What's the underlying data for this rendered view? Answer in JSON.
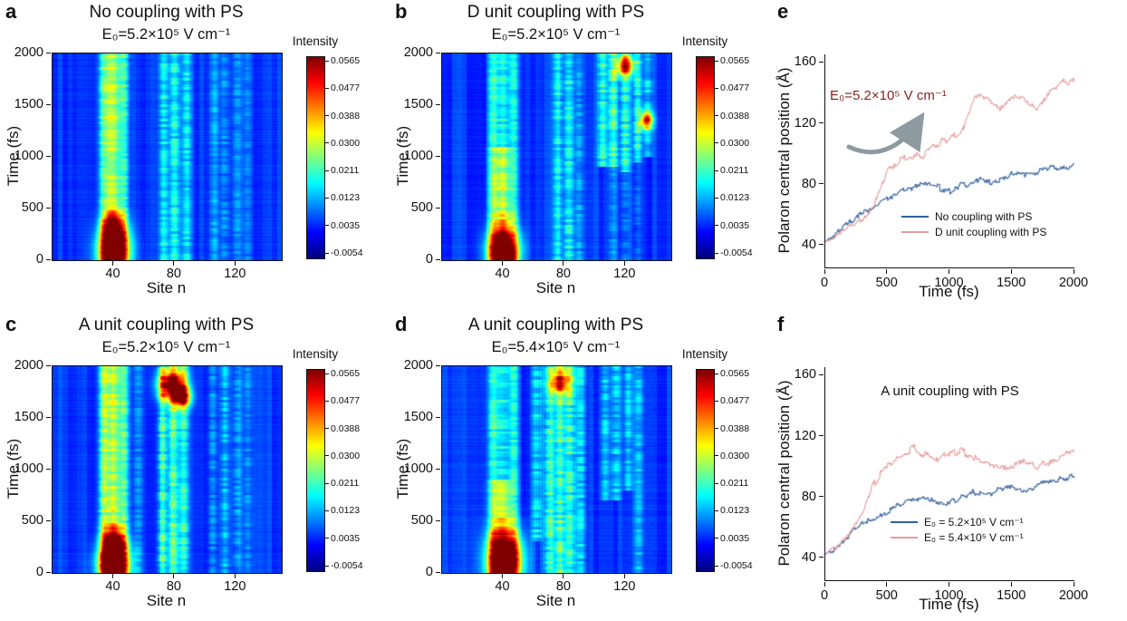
{
  "figure": {
    "background": "#ffffff"
  },
  "colors": {
    "blue_line": "#31609f",
    "pink_line": "#e89c9c",
    "annotation_red": "#8b1f1f",
    "arrow_gray": "#8d9ba1",
    "axis_color": "#111111"
  },
  "chart_data": [
    {
      "id": "a",
      "panel_letter": "a",
      "type": "heatmap",
      "title": "No coupling with PS",
      "subtitle": "E₀=5.2×10⁵ V cm⁻¹",
      "xlabel": "Site n",
      "ylabel": "Time (fs)",
      "xlim": [
        0,
        150
      ],
      "ylim": [
        0,
        2000
      ],
      "x_ticks": [
        40,
        80,
        120
      ],
      "y_ticks": [
        0,
        500,
        1000,
        1500,
        2000
      ],
      "zlabel": "Intensity",
      "zlim": [
        -0.0054,
        0.0565
      ],
      "z_tick_labels": [
        "0.0565",
        "0.0477",
        "0.0388",
        "0.0300",
        "0.0211",
        "0.0123",
        "0.0035",
        "-0.0054"
      ],
      "features": {
        "columns": [
          {
            "c": 39,
            "w": 4.5,
            "a": 0.5,
            "sp": 0.35
          },
          {
            "c": 33,
            "w": 2,
            "a": 0.25
          },
          {
            "c": 47,
            "w": 2,
            "a": 0.3
          },
          {
            "c": 73,
            "w": 2.2,
            "a": 0.3,
            "sp": 0.6
          },
          {
            "c": 80,
            "w": 2.2,
            "a": 0.33,
            "sp": 0.6
          },
          {
            "c": 88,
            "w": 2.2,
            "a": 0.26,
            "sp": 0.6
          },
          {
            "c": 106,
            "w": 2,
            "a": 0.16,
            "sp": 0.7
          },
          {
            "c": 113,
            "w": 2,
            "a": 0.17,
            "sp": 0.7
          },
          {
            "c": 121,
            "w": 2,
            "a": 0.15,
            "sp": 0.7
          },
          {
            "c": 128,
            "w": 2,
            "a": 0.12,
            "sp": 0.7
          }
        ],
        "hotspots": [
          {
            "c": 40,
            "time": 90,
            "sx": 7,
            "st": 150,
            "a": 1.0
          },
          {
            "c": 40,
            "time": 320,
            "sx": 5,
            "st": 110,
            "a": 0.5
          }
        ]
      }
    },
    {
      "id": "b",
      "panel_letter": "b",
      "type": "heatmap",
      "title": "D unit coupling with PS",
      "subtitle": "E₀=5.2×10⁵ V cm⁻¹",
      "xlabel": "Site n",
      "ylabel": "Time (fs)",
      "xlim": [
        0,
        150
      ],
      "ylim": [
        0,
        2000
      ],
      "x_ticks": [
        40,
        80,
        120
      ],
      "y_ticks": [
        0,
        500,
        1000,
        1500,
        2000
      ],
      "zlabel": "Intensity",
      "zlim": [
        -0.0054,
        0.0565
      ],
      "z_tick_labels": [
        "0.0565",
        "0.0477",
        "0.0388",
        "0.0300",
        "0.0211",
        "0.0123",
        "0.0035",
        "-0.0054"
      ],
      "features": {
        "columns": [
          {
            "c": 39,
            "w": 4.5,
            "a": 0.5,
            "sp": 0.35,
            "t1": 1100
          },
          {
            "c": 39,
            "w": 4,
            "a": 0.3,
            "sp": 0.5,
            "t0": 1100
          },
          {
            "c": 33,
            "w": 2,
            "a": 0.25
          },
          {
            "c": 47,
            "w": 2,
            "a": 0.28
          },
          {
            "c": 76,
            "w": 2.2,
            "a": 0.3,
            "sp": 0.6
          },
          {
            "c": 83,
            "w": 2.2,
            "a": 0.32,
            "sp": 0.6
          },
          {
            "c": 90,
            "w": 2,
            "a": 0.2,
            "sp": 0.6
          },
          {
            "c": 105,
            "w": 2,
            "a": 0.38,
            "sp": 0.55,
            "t0": 900
          },
          {
            "c": 112,
            "w": 2.2,
            "a": 0.42,
            "sp": 0.55,
            "t0": 900
          },
          {
            "c": 120,
            "w": 2.2,
            "a": 0.4,
            "sp": 0.55,
            "t0": 850
          },
          {
            "c": 128,
            "w": 2,
            "a": 0.38,
            "sp": 0.55,
            "t0": 950
          },
          {
            "c": 135,
            "w": 2,
            "a": 0.3,
            "sp": 0.6,
            "t0": 1000
          },
          {
            "c": 112,
            "w": 2,
            "a": 0.14,
            "sp": 0.7,
            "t1": 900
          },
          {
            "c": 120,
            "w": 2,
            "a": 0.14,
            "sp": 0.7,
            "t1": 850
          },
          {
            "c": 128,
            "w": 2,
            "a": 0.12,
            "sp": 0.7,
            "t1": 950
          }
        ],
        "hotspots": [
          {
            "c": 40,
            "time": 90,
            "sx": 7,
            "st": 150,
            "a": 1.0
          },
          {
            "c": 120,
            "time": 1880,
            "sx": 4,
            "st": 70,
            "a": 0.7
          },
          {
            "c": 134,
            "time": 1350,
            "sx": 3,
            "st": 60,
            "a": 0.65
          }
        ]
      }
    },
    {
      "id": "c",
      "panel_letter": "c",
      "type": "heatmap",
      "title": "A unit coupling with PS",
      "subtitle": "E₀=5.2×10⁵ V cm⁻¹",
      "xlabel": "Site n",
      "ylabel": "Time (fs)",
      "xlim": [
        0,
        150
      ],
      "ylim": [
        0,
        2000
      ],
      "x_ticks": [
        40,
        80,
        120
      ],
      "y_ticks": [
        0,
        500,
        1000,
        1500,
        2000
      ],
      "zlabel": "Intensity",
      "zlim": [
        -0.0054,
        0.0565
      ],
      "z_tick_labels": [
        "0.0565",
        "0.0477",
        "0.0388",
        "0.0300",
        "0.0211",
        "0.0123",
        "0.0035",
        "-0.0054"
      ],
      "features": {
        "columns": [
          {
            "c": 39,
            "w": 4.5,
            "a": 0.52,
            "sp": 0.35
          },
          {
            "c": 33,
            "w": 2,
            "a": 0.3
          },
          {
            "c": 47,
            "w": 2,
            "a": 0.32
          },
          {
            "c": 56,
            "w": 2,
            "a": 0.18,
            "sp": 0.6
          },
          {
            "c": 72,
            "w": 2.2,
            "a": 0.38,
            "sp": 0.55
          },
          {
            "c": 79,
            "w": 2.2,
            "a": 0.4,
            "sp": 0.55
          },
          {
            "c": 86,
            "w": 2.2,
            "a": 0.35,
            "sp": 0.55
          },
          {
            "c": 105,
            "w": 2,
            "a": 0.18,
            "sp": 0.7
          },
          {
            "c": 113,
            "w": 2,
            "a": 0.2,
            "sp": 0.7
          },
          {
            "c": 121,
            "w": 2,
            "a": 0.18,
            "sp": 0.7
          },
          {
            "c": 128,
            "w": 2,
            "a": 0.14,
            "sp": 0.7
          }
        ],
        "hotspots": [
          {
            "c": 40,
            "time": 80,
            "sx": 7,
            "st": 140,
            "a": 1.0
          },
          {
            "c": 40,
            "time": 300,
            "sx": 5,
            "st": 100,
            "a": 0.55
          },
          {
            "c": 78,
            "time": 1820,
            "sx": 6,
            "st": 100,
            "a": 0.85
          },
          {
            "c": 85,
            "time": 1700,
            "sx": 4,
            "st": 70,
            "a": 0.65
          }
        ]
      }
    },
    {
      "id": "d",
      "panel_letter": "d",
      "type": "heatmap",
      "title": "A unit coupling with PS",
      "subtitle": "E₀=5.4×10⁵ V cm⁻¹",
      "xlabel": "Site n",
      "ylabel": "Time (fs)",
      "xlim": [
        0,
        150
      ],
      "ylim": [
        0,
        2000
      ],
      "x_ticks": [
        40,
        80,
        120
      ],
      "y_ticks": [
        0,
        500,
        1000,
        1500,
        2000
      ],
      "zlabel": "Intensity",
      "zlim": [
        -0.0054,
        0.0565
      ],
      "z_tick_labels": [
        "0.0565",
        "0.0477",
        "0.0388",
        "0.0300",
        "0.0211",
        "0.0123",
        "0.0035",
        "-0.0054"
      ],
      "features": {
        "columns": [
          {
            "c": 39,
            "w": 4.5,
            "a": 0.5,
            "sp": 0.35,
            "t1": 900
          },
          {
            "c": 39,
            "w": 4,
            "a": 0.3,
            "sp": 0.5,
            "t0": 900
          },
          {
            "c": 33,
            "w": 2,
            "a": 0.28
          },
          {
            "c": 47,
            "w": 2,
            "a": 0.3
          },
          {
            "c": 62,
            "w": 2.2,
            "a": 0.3,
            "sp": 0.6,
            "t0": 300
          },
          {
            "c": 70,
            "w": 2.2,
            "a": 0.4,
            "sp": 0.55
          },
          {
            "c": 77,
            "w": 2.4,
            "a": 0.45,
            "sp": 0.5
          },
          {
            "c": 84,
            "w": 2.2,
            "a": 0.4,
            "sp": 0.55
          },
          {
            "c": 91,
            "w": 2,
            "a": 0.3,
            "sp": 0.6
          },
          {
            "c": 107,
            "w": 2,
            "a": 0.25,
            "sp": 0.65,
            "t0": 700
          },
          {
            "c": 114,
            "w": 2,
            "a": 0.28,
            "sp": 0.65,
            "t0": 700
          },
          {
            "c": 122,
            "w": 2,
            "a": 0.25,
            "sp": 0.65,
            "t0": 800
          },
          {
            "c": 129,
            "w": 2,
            "a": 0.2,
            "sp": 0.7
          }
        ],
        "hotspots": [
          {
            "c": 41,
            "time": 110,
            "sx": 8,
            "st": 200,
            "a": 1.0
          },
          {
            "c": 77,
            "time": 1850,
            "sx": 5,
            "st": 90,
            "a": 0.55
          }
        ]
      }
    },
    {
      "id": "e",
      "panel_letter": "e",
      "type": "line",
      "xlabel": "Time (fs)",
      "ylabel": "Polaron central position (Å)",
      "xlim": [
        0,
        2000
      ],
      "ylim": [
        25,
        165
      ],
      "x_ticks": [
        0,
        500,
        1000,
        1500,
        2000
      ],
      "y_ticks": [
        40,
        80,
        120,
        160
      ],
      "annotation": "E₀=5.2×10⁵ V cm⁻¹",
      "noise_amp": 1.7,
      "legend_position": "right-center",
      "series": [
        {
          "name": "No coupling with PS",
          "color": "#31609f",
          "x": [
            0,
            100,
            200,
            300,
            400,
            500,
            600,
            700,
            800,
            900,
            1000,
            1100,
            1200,
            1300,
            1400,
            1500,
            1600,
            1700,
            1800,
            1900,
            2000
          ],
          "y": [
            42,
            48,
            55,
            62,
            66,
            70,
            74,
            78,
            79,
            78,
            76,
            79,
            82,
            81,
            84,
            86,
            85,
            88,
            91,
            90,
            94
          ]
        },
        {
          "name": "D unit coupling with PS",
          "color": "#e89c9c",
          "x": [
            0,
            100,
            200,
            300,
            400,
            500,
            600,
            700,
            800,
            900,
            1000,
            1100,
            1200,
            1300,
            1400,
            1500,
            1600,
            1700,
            1800,
            1900,
            2000
          ],
          "y": [
            42,
            46,
            52,
            57,
            68,
            88,
            95,
            97,
            100,
            106,
            110,
            116,
            138,
            134,
            130,
            139,
            134,
            128,
            140,
            146,
            147
          ]
        }
      ]
    },
    {
      "id": "f",
      "panel_letter": "f",
      "type": "line",
      "xlabel": "Time (fs)",
      "ylabel": "Polaron central position (Å)",
      "xlim": [
        0,
        2000
      ],
      "ylim": [
        25,
        165
      ],
      "x_ticks": [
        0,
        500,
        1000,
        1500,
        2000
      ],
      "y_ticks": [
        40,
        80,
        120,
        160
      ],
      "annotation": "A unit coupling with PS",
      "noise_amp": 1.7,
      "legend_position": "bottom-right",
      "series": [
        {
          "name": "E₀ = 5.2×10⁵ V cm⁻¹",
          "color": "#31609f",
          "x": [
            0,
            100,
            200,
            300,
            400,
            500,
            600,
            700,
            800,
            900,
            1000,
            1100,
            1200,
            1300,
            1400,
            1500,
            1600,
            1700,
            1800,
            1900,
            2000
          ],
          "y": [
            42,
            48,
            55,
            62,
            66,
            70,
            74,
            78,
            79,
            78,
            76,
            79,
            82,
            81,
            84,
            86,
            85,
            88,
            91,
            90,
            94
          ]
        },
        {
          "name": "E₀ = 5.4×10⁵ V cm⁻¹",
          "color": "#e89c9c",
          "x": [
            0,
            100,
            200,
            300,
            400,
            500,
            600,
            700,
            800,
            900,
            1000,
            1100,
            1200,
            1300,
            1400,
            1500,
            1600,
            1700,
            1800,
            1900,
            2000
          ],
          "y": [
            42,
            47,
            55,
            70,
            90,
            100,
            105,
            112,
            108,
            104,
            109,
            110,
            105,
            100,
            101,
            99,
            104,
            99,
            103,
            107,
            109
          ]
        }
      ]
    }
  ]
}
